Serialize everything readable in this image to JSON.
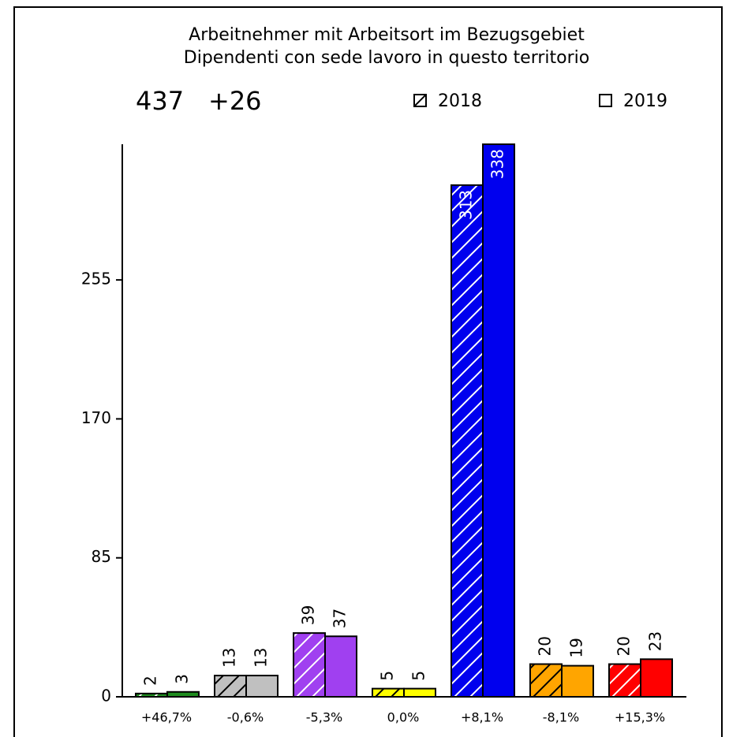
{
  "chart_data": {
    "type": "bar",
    "title": "Arbeitnehmer mit Arbeitsort im Bezugsgebiet",
    "subtitle": "Dipendenti con sede lavoro in questo territorio",
    "total": 437,
    "change": {
      "value": 26,
      "label": "+26"
    },
    "categories": [
      "+46,7%",
      "-0,6%",
      "-5,3%",
      "0,0%",
      "+8,1%",
      "-8,1%",
      "+15,3%"
    ],
    "category_colors": [
      "#1e8c1e",
      "#c0c0c0",
      "#a040f0",
      "#ffff00",
      "#0000ee",
      "#ffa500",
      "#ff0000"
    ],
    "series": [
      {
        "name": "2018",
        "pattern": "hatch",
        "values": [
          2,
          13,
          39,
          5,
          313,
          20,
          20
        ]
      },
      {
        "name": "2019",
        "pattern": "solid",
        "values": [
          3,
          13,
          37,
          5,
          338,
          19,
          23
        ]
      }
    ],
    "ylim": [
      0,
      338
    ],
    "yticks": [
      0,
      85,
      170,
      255
    ]
  }
}
